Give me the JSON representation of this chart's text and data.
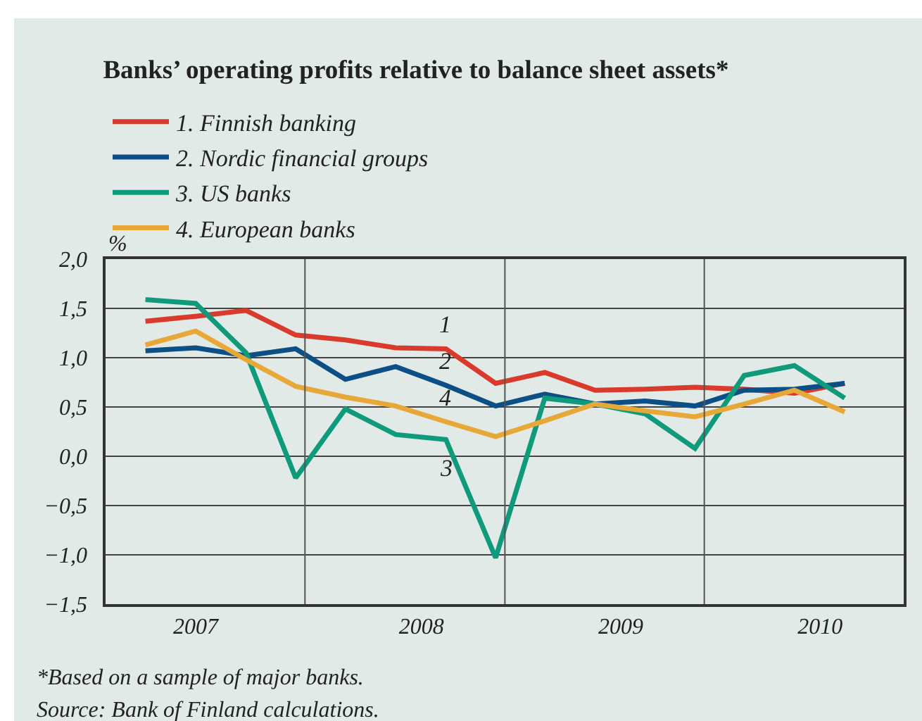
{
  "chart_data": {
    "type": "line",
    "title": "Banks’ operating profits relative to balance sheet assets*",
    "ylabel": "%",
    "x": [
      "2007-03-15",
      "2007-06-15",
      "2007-09-15",
      "2007-12-15",
      "2008-03-15",
      "2008-06-15",
      "2008-09-15",
      "2008-12-15",
      "2009-03-15",
      "2009-06-15",
      "2009-09-15",
      "2009-12-15",
      "2010-03-15",
      "2010-06-15",
      "2010-09-15"
    ],
    "series": [
      {
        "name": "1. Finnish banking",
        "color": "#d93a2b",
        "values": [
          1.37,
          1.42,
          1.48,
          1.23,
          1.18,
          1.1,
          1.09,
          0.74,
          0.85,
          0.67,
          0.68,
          0.7,
          0.68,
          0.64,
          0.74
        ]
      },
      {
        "name": "2. Nordic financial groups",
        "color": "#0c4f86",
        "values": [
          1.07,
          1.1,
          1.02,
          1.09,
          0.78,
          0.91,
          0.72,
          0.51,
          0.63,
          0.53,
          0.56,
          0.51,
          0.67,
          0.68,
          0.74
        ]
      },
      {
        "name": "3. US banks",
        "color": "#0e9a7b",
        "values": [
          1.59,
          1.55,
          1.05,
          -0.22,
          0.48,
          0.22,
          0.17,
          -1.03,
          0.59,
          0.53,
          0.43,
          0.08,
          0.82,
          0.92,
          0.59
        ]
      },
      {
        "name": "4. European banks",
        "color": "#e8a838",
        "values": [
          1.13,
          1.27,
          0.98,
          0.71,
          0.6,
          0.51,
          0.35,
          0.2,
          0.36,
          0.53,
          0.46,
          0.4,
          0.53,
          0.67,
          0.45
        ]
      }
    ],
    "xlim": [
      "2007-01-01",
      "2011-01-01"
    ],
    "xticks": [
      {
        "value": "2007-06-15",
        "label": "2007"
      },
      {
        "value": "2008-01-01",
        "label": null
      },
      {
        "value": "2008-08-01",
        "label": "2008"
      },
      {
        "value": "2009-01-01",
        "label": null
      },
      {
        "value": "2009-08-01",
        "label": "2009"
      },
      {
        "value": "2010-01-01",
        "label": null
      },
      {
        "value": "2010-08-01",
        "label": "2010"
      }
    ],
    "ylim": [
      -1.5,
      2.0
    ],
    "yticks": [
      {
        "value": 2.0,
        "label": "2,0"
      },
      {
        "value": 1.5,
        "label": "1,5"
      },
      {
        "value": 1.0,
        "label": "1,0"
      },
      {
        "value": 0.5,
        "label": "0,5"
      },
      {
        "value": 0,
        "label": "0,0"
      },
      {
        "value": -0.5,
        "label": "−0,5"
      },
      {
        "value": -1.0,
        "label": "−1,0"
      },
      {
        "value": -1.5,
        "label": "−1,5"
      }
    ],
    "grid": true,
    "legend": "top left",
    "line_style": "solid",
    "annotations": [
      {
        "text": "1",
        "x": "2008-09-15",
        "y": 1.09
      },
      {
        "text": "2",
        "x": "2008-09-15",
        "y": 0.72
      },
      {
        "text": "4",
        "x": "2008-09-15",
        "y": 0.35
      },
      {
        "text": "3",
        "x": "2008-09-15",
        "y": 0.17
      },
      "*Based on a sample of major banks.",
      "Source: Bank of Finland calculations."
    ]
  }
}
